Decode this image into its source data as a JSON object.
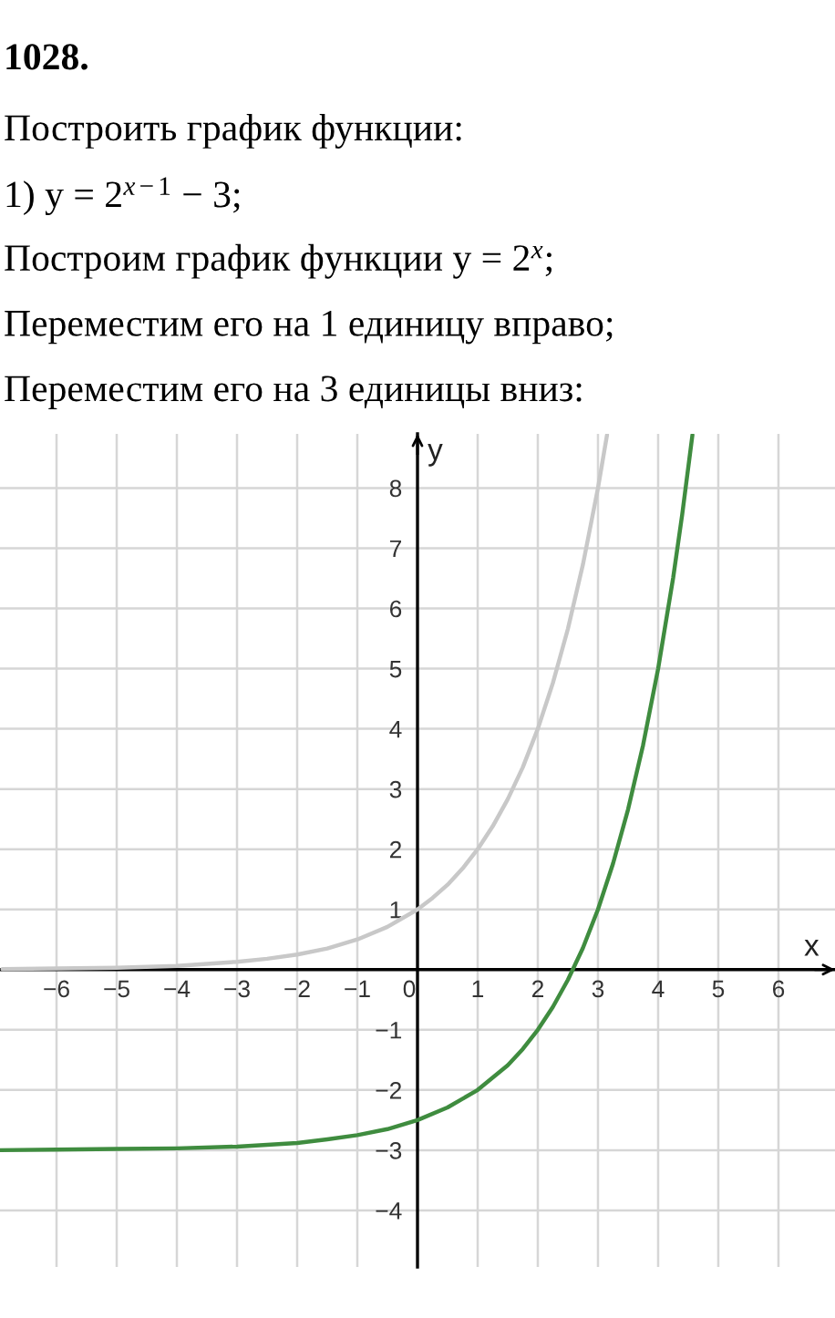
{
  "chart_data": {
    "type": "line",
    "title": "1028.",
    "annotations": [
      "Построить график функции:",
      "1) y = 2$^{x−1}$ − 3;",
      "Построим график функции y = 2$^{x}$;",
      "Переместим его на 1 единицу вправо;",
      "Переместим его на 3 единицы вниз:"
    ],
    "xlabel": "x",
    "ylabel": "y",
    "xlim": [
      -6.94,
      6.94
    ],
    "ylim": [
      -4.94,
      8.9
    ],
    "xticks": [
      {
        "value": -6,
        "label": "−6"
      },
      {
        "value": -5,
        "label": "−5"
      },
      {
        "value": -4,
        "label": "−4"
      },
      {
        "value": -3,
        "label": "−3"
      },
      {
        "value": -2,
        "label": "−2"
      },
      {
        "value": -1,
        "label": "−1"
      },
      0,
      1,
      2,
      3,
      4,
      5,
      6
    ],
    "yticks": [
      {
        "value": -4,
        "label": "−4"
      },
      {
        "value": -3,
        "label": "−3"
      },
      {
        "value": -2,
        "label": "−2"
      },
      {
        "value": -1,
        "label": "−1"
      },
      1,
      2,
      3,
      4,
      5,
      6,
      7,
      8
    ],
    "grid": true,
    "series": [
      {
        "color": "#c8c8c8",
        "x": [
          -6.9,
          -6,
          -5,
          -4,
          -3,
          -2.5,
          -2,
          -1.5,
          -1,
          -0.5,
          0,
          0.25,
          0.5,
          0.75,
          1,
          1.25,
          1.5,
          1.75,
          2,
          2.25,
          2.5,
          2.75,
          3,
          3.15
        ],
        "values": [
          0.01,
          0.02,
          0.03,
          0.06,
          0.13,
          0.18,
          0.25,
          0.35,
          0.5,
          0.71,
          1,
          1.19,
          1.41,
          1.68,
          2,
          2.38,
          2.83,
          3.36,
          4,
          4.76,
          5.66,
          6.73,
          8,
          8.88
        ]
      },
      {
        "color": "#3f8c3f",
        "x": [
          -6.94,
          -6,
          -5,
          -4,
          -3,
          -2,
          -1.5,
          -1,
          -0.5,
          0,
          0.5,
          1,
          1.5,
          1.75,
          2,
          2.25,
          2.5,
          2.75,
          3,
          3.25,
          3.5,
          3.75,
          4,
          4.25,
          4.4,
          4.57
        ],
        "values": [
          -3,
          -2.99,
          -2.98,
          -2.97,
          -2.94,
          -2.88,
          -2.82,
          -2.75,
          -2.65,
          -2.5,
          -2.29,
          -2,
          -1.59,
          -1.32,
          -1,
          -0.62,
          -0.17,
          0.36,
          1,
          1.76,
          2.66,
          3.73,
          5,
          6.51,
          7.56,
          8.88
        ]
      }
    ]
  }
}
